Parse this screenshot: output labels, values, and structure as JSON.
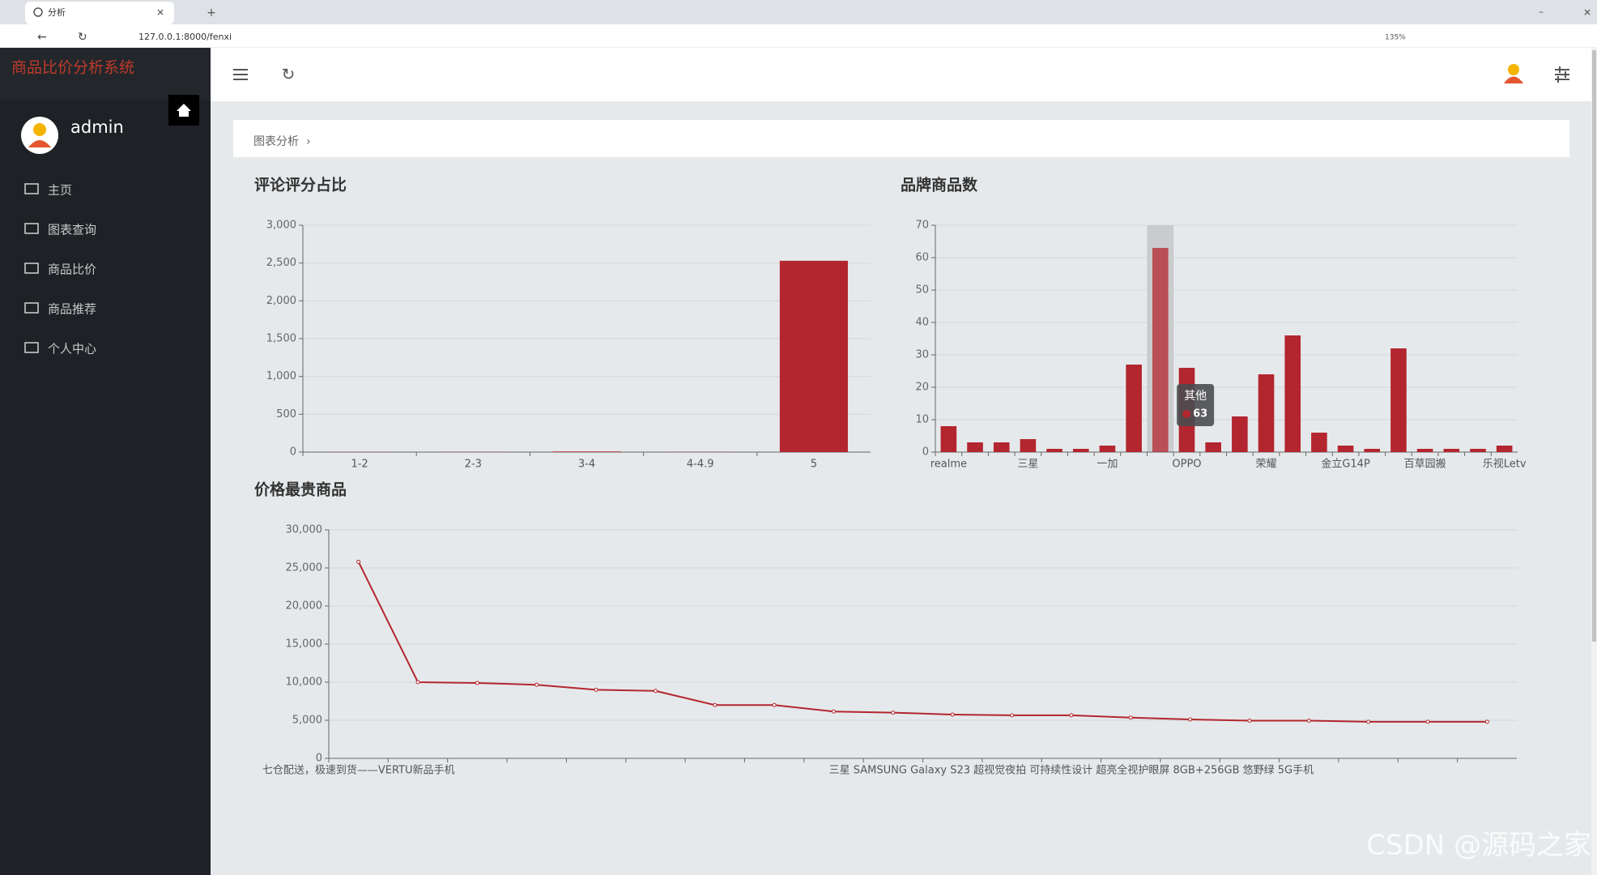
{
  "browser": {
    "tab_title": "分析",
    "url": "127.0.0.1:8000/fenxi",
    "zoom": "135%"
  },
  "sidebar": {
    "brand": "商品比价分析系统",
    "user": "admin",
    "menu": [
      "主页",
      "图表查询",
      "商品比价",
      "商品推荐",
      "个人中心"
    ]
  },
  "breadcrumb": "图表分析",
  "watermark": "CSDN @源码之家",
  "chart_data": [
    {
      "type": "bar",
      "title": "评论评分占比",
      "color": "#b3262f",
      "grid": true,
      "categories": [
        "1-2",
        "2-3",
        "3-4",
        "4-4.9",
        "5"
      ],
      "values": [
        2,
        3,
        8,
        3,
        2530
      ],
      "ylim": [
        0,
        3000
      ],
      "yticks": [
        0,
        500,
        {
          "value": 1000,
          "label": "1,000"
        },
        {
          "value": 1500,
          "label": "1,500"
        },
        {
          "value": 2000,
          "label": "2,000"
        },
        {
          "value": 2500,
          "label": "2,500"
        },
        {
          "value": 3000,
          "label": "3,000"
        }
      ]
    },
    {
      "type": "bar",
      "title": "品牌商品数",
      "color": "#b3262f",
      "grid": true,
      "categories": [
        "realme",
        null,
        null,
        "三星",
        null,
        null,
        "一加",
        null,
        null,
        "OPPO",
        null,
        null,
        "荣耀",
        null,
        null,
        "金立G14P",
        null,
        null,
        "百草园搬",
        null,
        null,
        "乐视Letv"
      ],
      "values": [
        8,
        3,
        3,
        4,
        1,
        1,
        2,
        27,
        63,
        26,
        3,
        11,
        24,
        36,
        6,
        2,
        1,
        32,
        1,
        1,
        1,
        2
      ],
      "tooltip_label": "其他",
      "ylim": [
        0,
        70
      ],
      "yticks": [
        0,
        10,
        20,
        30,
        40,
        50,
        60,
        70
      ]
    },
    {
      "type": "line",
      "title": "价格最贵商品",
      "color": "#b3262f",
      "grid": true,
      "categories": [
        "七仓配送，极速到货——VERTU新品手机",
        null,
        null,
        null,
        null,
        null,
        null,
        null,
        null,
        null,
        null,
        null,
        "三星 SAMSUNG Galaxy S23 超视觉夜拍 可持续性设计 超亮全视护眼屏 8GB+256GB 悠野绿 5G手机",
        null,
        null,
        null,
        null,
        null,
        null,
        null
      ],
      "values": [
        25800,
        10000,
        9900,
        9650,
        9000,
        8850,
        7000,
        7000,
        6150,
        6000,
        5750,
        5650,
        5650,
        5350,
        5100,
        4950,
        4950,
        4800,
        4800,
        4800
      ],
      "ylim": [
        0,
        30000
      ],
      "yticks": [
        0,
        {
          "value": 5000,
          "label": "5,000"
        },
        {
          "value": 10000,
          "label": "10,000"
        },
        {
          "value": 15000,
          "label": "15,000"
        },
        {
          "value": 20000,
          "label": "20,000"
        },
        {
          "value": 25000,
          "label": "25,000"
        },
        {
          "value": 30000,
          "label": "30,000"
        }
      ]
    }
  ]
}
